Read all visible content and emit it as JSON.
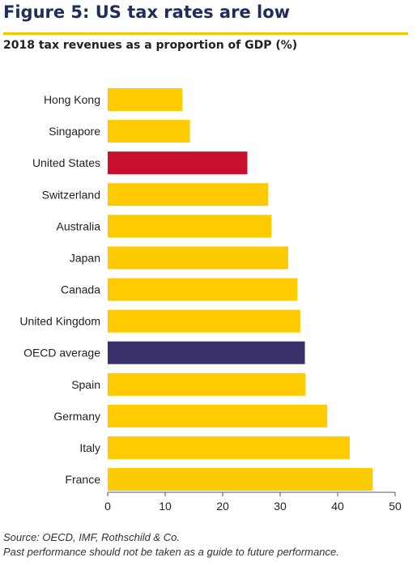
{
  "title": "Figure 5: US tax rates are low",
  "subtitle": "2018 tax revenues as a proportion of GDP (%)",
  "footer": {
    "source": "Source: OECD, IMF, Rothschild & Co.",
    "disclaimer": "Past performance should not be taken as a guide to future performance."
  },
  "colors": {
    "default_bar": "#fdcb00",
    "highlight_us": "#c8102e",
    "highlight_oecd": "#3a2f6b",
    "title": "#1f2d5a",
    "rule": "#f5c400"
  },
  "chart_data": {
    "type": "bar",
    "orientation": "horizontal",
    "categories": [
      "Hong Kong",
      "Singapore",
      "United States",
      "Switzerland",
      "Australia",
      "Japan",
      "Canada",
      "United Kingdom",
      "OECD average",
      "Spain",
      "Germany",
      "Italy",
      "France"
    ],
    "values": [
      13.0,
      14.3,
      24.3,
      27.9,
      28.5,
      31.4,
      33.0,
      33.5,
      34.3,
      34.4,
      38.2,
      42.1,
      46.1
    ],
    "highlights": {
      "United States": "highlight_us",
      "OECD average": "highlight_oecd"
    },
    "xlim": [
      0,
      50
    ],
    "xticks": [
      0,
      10,
      20,
      30,
      40,
      50
    ],
    "grid": false
  }
}
